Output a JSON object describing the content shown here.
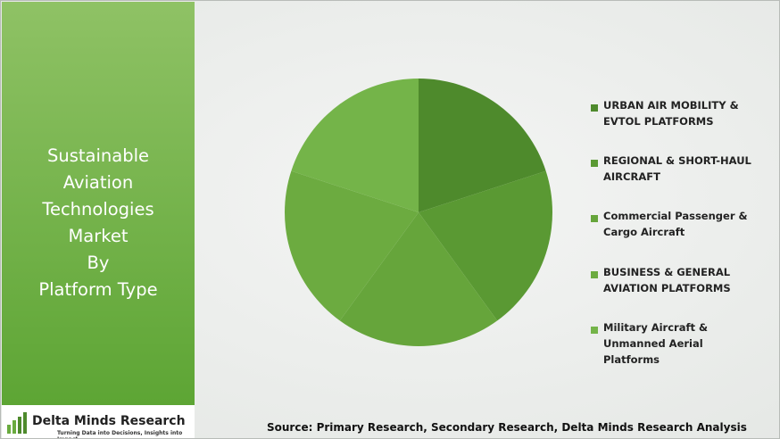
{
  "chart_data": {
    "type": "pie",
    "title": "Sustainable\nAviation\nTechnologies\nMarket\nBy\nPlatform Type",
    "categories": [
      "URBAN AIR MOBILITY &\nEVTOL PLATFORMS",
      "REGIONAL & SHORT-HAUL\nAIRCRAFT",
      "Commercial Passenger &\nCargo Aircraft",
      "BUSINESS & GENERAL\nAVIATION PLATFORMS",
      "Military Aircraft &\nUnmanned Aerial\nPlatforms"
    ],
    "values": [
      20,
      20,
      20,
      20,
      20
    ],
    "colors": [
      "#4e8a2c",
      "#5a9933",
      "#66a53b",
      "#6cab40",
      "#74b449"
    ],
    "source": "Source: Primary Research, Secondary Research, Delta Minds Research Analysis"
  },
  "brand": {
    "name": "Delta Minds Research",
    "tagline": "Turning Data into Decisions, Insights into Impact"
  }
}
